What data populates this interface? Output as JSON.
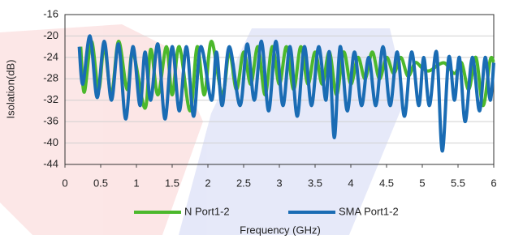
{
  "chart_data": {
    "type": "line",
    "xlabel": "Frequency (GHz)",
    "ylabel": "Isolation(dB)",
    "xlim": [
      0,
      6
    ],
    "xticks": [
      0,
      0.5,
      1,
      1.5,
      2,
      2.5,
      3,
      3.5,
      4,
      4.5,
      5,
      5.5,
      6
    ],
    "ylim": [
      -44,
      -16
    ],
    "yticks": [
      -16,
      -20,
      -24,
      -28,
      -32,
      -36,
      -40,
      -44
    ],
    "grid": true,
    "legend": "bottom",
    "series": [
      {
        "name": "N Port1-2",
        "color": "#4cb82c",
        "x": [
          0.22,
          0.27,
          0.37,
          0.47,
          0.55,
          0.65,
          0.75,
          0.87,
          0.95,
          1.12,
          1.2,
          1.3,
          1.42,
          1.5,
          1.6,
          1.75,
          1.85,
          1.95,
          2.05,
          2.2,
          2.3,
          2.4,
          2.5,
          2.6,
          2.7,
          2.8,
          2.9,
          3.0,
          3.1,
          3.2,
          3.3,
          3.4,
          3.5,
          3.6,
          3.7,
          3.8,
          3.9,
          4.0,
          4.1,
          4.2,
          4.3,
          4.4,
          4.5,
          4.6,
          4.7,
          4.8,
          4.9,
          5.0,
          5.1,
          5.3,
          5.45,
          5.55,
          5.65,
          5.75,
          5.85,
          5.95,
          6.0
        ],
        "values": [
          -22,
          -30.5,
          -21,
          -30,
          -22,
          -31,
          -21,
          -30,
          -23,
          -33.5,
          -22.5,
          -31,
          -22,
          -31,
          -22,
          -34,
          -22,
          -31,
          -21,
          -31,
          -23,
          -30,
          -23,
          -29,
          -22,
          -31,
          -22,
          -29,
          -22,
          -30,
          -22,
          -29,
          -23,
          -29,
          -23,
          -31,
          -23,
          -29,
          -24,
          -28,
          -23,
          -28,
          -24,
          -27,
          -24,
          -27.5,
          -25,
          -26,
          -26.5,
          -25,
          -27,
          -25,
          -30,
          -24,
          -33,
          -24.5,
          -25
        ]
      },
      {
        "name": "SMA Port1-2",
        "color": "#1a6cb4",
        "x": [
          0.2,
          0.25,
          0.35,
          0.45,
          0.55,
          0.65,
          0.75,
          0.85,
          0.95,
          1.05,
          1.12,
          1.2,
          1.3,
          1.4,
          1.5,
          1.6,
          1.7,
          1.8,
          1.9,
          2.05,
          2.12,
          2.2,
          2.3,
          2.45,
          2.55,
          2.65,
          2.75,
          2.85,
          2.95,
          3.05,
          3.15,
          3.25,
          3.35,
          3.45,
          3.55,
          3.65,
          3.7,
          3.77,
          3.85,
          3.95,
          4.05,
          4.15,
          4.25,
          4.35,
          4.45,
          4.55,
          4.65,
          4.75,
          4.85,
          4.95,
          5.02,
          5.1,
          5.2,
          5.28,
          5.37,
          5.45,
          5.52,
          5.6,
          5.7,
          5.8,
          5.88,
          5.95,
          6.0
        ],
        "values": [
          -22,
          -29,
          -20,
          -31.5,
          -21,
          -32,
          -21.5,
          -35.5,
          -22,
          -33,
          -23,
          -32,
          -21.5,
          -35.5,
          -22,
          -34,
          -22,
          -35,
          -22,
          -32,
          -23,
          -33,
          -22,
          -33,
          -21.5,
          -32,
          -21,
          -34,
          -21,
          -33,
          -22,
          -35,
          -22,
          -33,
          -22,
          -32,
          -23,
          -39,
          -22,
          -34,
          -23,
          -33,
          -24,
          -33,
          -22,
          -33,
          -23,
          -35,
          -23,
          -33,
          -24,
          -33,
          -23,
          -41.5,
          -24,
          -32,
          -24,
          -36,
          -24,
          -34,
          -24,
          -32,
          -25
        ]
      }
    ]
  }
}
